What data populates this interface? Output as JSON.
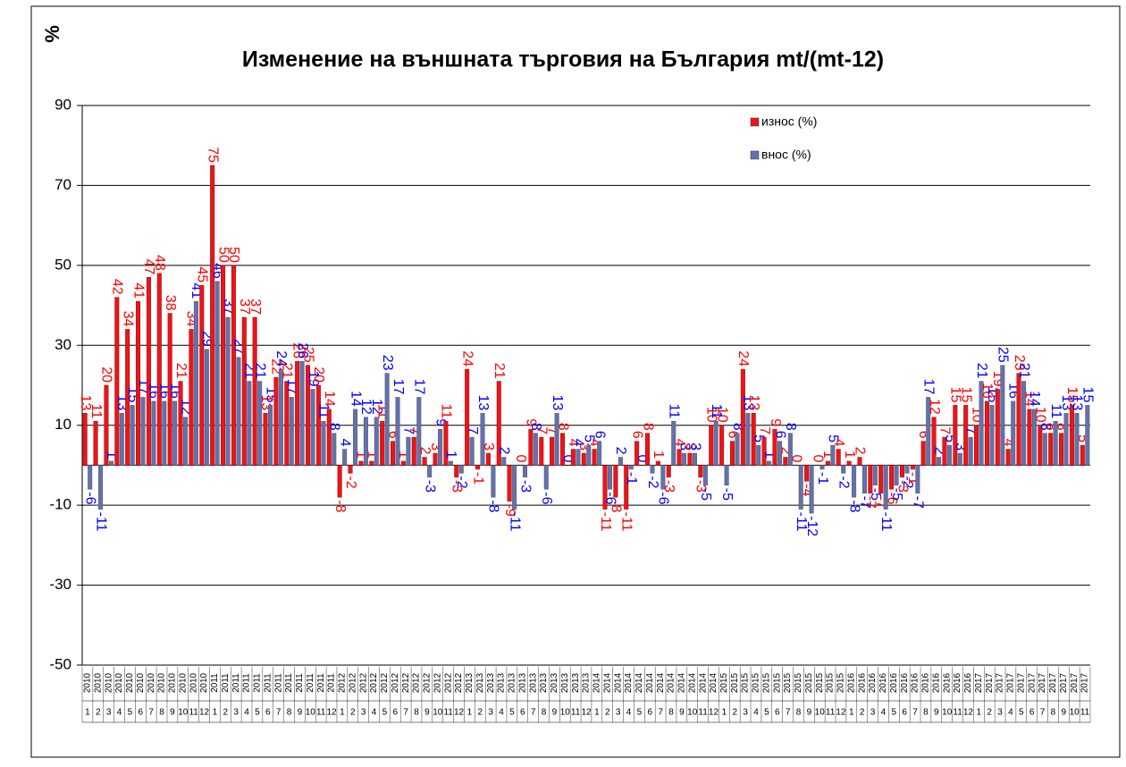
{
  "chart_data": {
    "type": "bar",
    "title": "Изменение на външната търговия на България mt/(mt-12)",
    "y_label": "%",
    "category_years": [
      "2010",
      "2010",
      "2010",
      "2010",
      "2010",
      "2010",
      "2010",
      "2010",
      "2010",
      "2010",
      "2010",
      "2010",
      "2011",
      "2011",
      "2011",
      "2011",
      "2011",
      "2011",
      "2011",
      "2011",
      "2011",
      "2011",
      "2011",
      "2011",
      "2012",
      "2012",
      "2012",
      "2012",
      "2012",
      "2012",
      "2012",
      "2012",
      "2012",
      "2012",
      "2012",
      "2012",
      "2013",
      "2013",
      "2013",
      "2013",
      "2013",
      "2013",
      "2013",
      "2013",
      "2013",
      "2013",
      "2013",
      "2013",
      "2014",
      "2014",
      "2014",
      "2014",
      "2014",
      "2014",
      "2014",
      "2014",
      "2014",
      "2014",
      "2014",
      "2014",
      "2015",
      "2015",
      "2015",
      "2015",
      "2015",
      "2015",
      "2015",
      "2015",
      "2015",
      "2015",
      "2015",
      "2015",
      "2016",
      "2016",
      "2016",
      "2016",
      "2016",
      "2016",
      "2016",
      "2016",
      "2016",
      "2016",
      "2016",
      "2016",
      "2017",
      "2017",
      "2017",
      "2017",
      "2017",
      "2017",
      "2017",
      "2017",
      "2017",
      "2017",
      "2017"
    ],
    "categories": [
      "1",
      "2",
      "3",
      "4",
      "5",
      "6",
      "7",
      "8",
      "9",
      "10",
      "11",
      "12",
      "1",
      "2",
      "3",
      "4",
      "5",
      "6",
      "7",
      "8",
      "9",
      "10",
      "11",
      "12",
      "1",
      "2",
      "3",
      "4",
      "5",
      "6",
      "7",
      "8",
      "9",
      "10",
      "11",
      "12",
      "1",
      "2",
      "3",
      "4",
      "5",
      "6",
      "7",
      "8",
      "9",
      "10",
      "11",
      "12",
      "1",
      "2",
      "3",
      "4",
      "5",
      "6",
      "7",
      "8",
      "9",
      "10",
      "11",
      "12",
      "1",
      "2",
      "3",
      "4",
      "5",
      "6",
      "7",
      "8",
      "9",
      "10",
      "11",
      "12",
      "1",
      "2",
      "3",
      "4",
      "5",
      "6",
      "7",
      "8",
      "9",
      "10",
      "11",
      "12",
      "1",
      "2",
      "3",
      "4",
      "5",
      "6",
      "7",
      "8",
      "9",
      "10",
      "11"
    ],
    "series": [
      {
        "name": "износ (%)",
        "color": "#e8161b",
        "label_color": "#ff0000",
        "values": [
          13,
          11,
          20,
          42,
          34,
          41,
          47,
          48,
          38,
          21,
          34,
          45,
          75,
          50,
          50,
          37,
          37,
          13,
          22,
          21,
          26,
          25,
          20,
          14,
          -8,
          -2,
          1,
          1,
          11,
          6,
          1,
          7,
          2,
          3,
          11,
          -3,
          24,
          -1,
          3,
          21,
          -9,
          0,
          9,
          7,
          7,
          8,
          4,
          3,
          4,
          -11,
          -8,
          -11,
          6,
          8,
          1,
          -3,
          4,
          3,
          -3,
          10,
          10,
          6,
          24,
          13,
          7,
          9,
          2,
          0,
          -4,
          0,
          1,
          4,
          1,
          2,
          -7,
          -7,
          -6,
          -3,
          -1,
          6,
          12,
          7,
          15,
          15,
          10,
          16,
          19,
          4,
          23,
          14,
          10,
          8,
          8,
          15,
          5
        ]
      },
      {
        "name": "внос (%)",
        "color": "#6272b0",
        "label_color": "#0000ff",
        "values": [
          -6,
          -11,
          1,
          13,
          15,
          17,
          16,
          16,
          16,
          12,
          41,
          29,
          46,
          37,
          27,
          21,
          21,
          15,
          24,
          17,
          26,
          19,
          11,
          8,
          4,
          14,
          12,
          12,
          23,
          17,
          7,
          17,
          -3,
          9,
          1,
          -2,
          7,
          13,
          -8,
          2,
          -11,
          -3,
          8,
          -6,
          13,
          0,
          4,
          5,
          6,
          -6,
          2,
          -1,
          0,
          -2,
          -6,
          11,
          3,
          3,
          -5,
          11,
          -5,
          8,
          13,
          5,
          1,
          6,
          8,
          -11,
          -12,
          -1,
          5,
          -2,
          -8,
          -7,
          -5,
          -11,
          -5,
          -2,
          -7,
          17,
          2,
          5,
          3,
          7,
          21,
          15,
          25,
          16,
          21,
          14,
          8,
          11,
          13,
          13,
          15
        ]
      }
    ],
    "ylim": [
      -50,
      90
    ],
    "yticks": [
      -50,
      -30,
      -10,
      10,
      30,
      50,
      70,
      90
    ],
    "grid": true,
    "legend": "top-right",
    "data_labels": true
  }
}
